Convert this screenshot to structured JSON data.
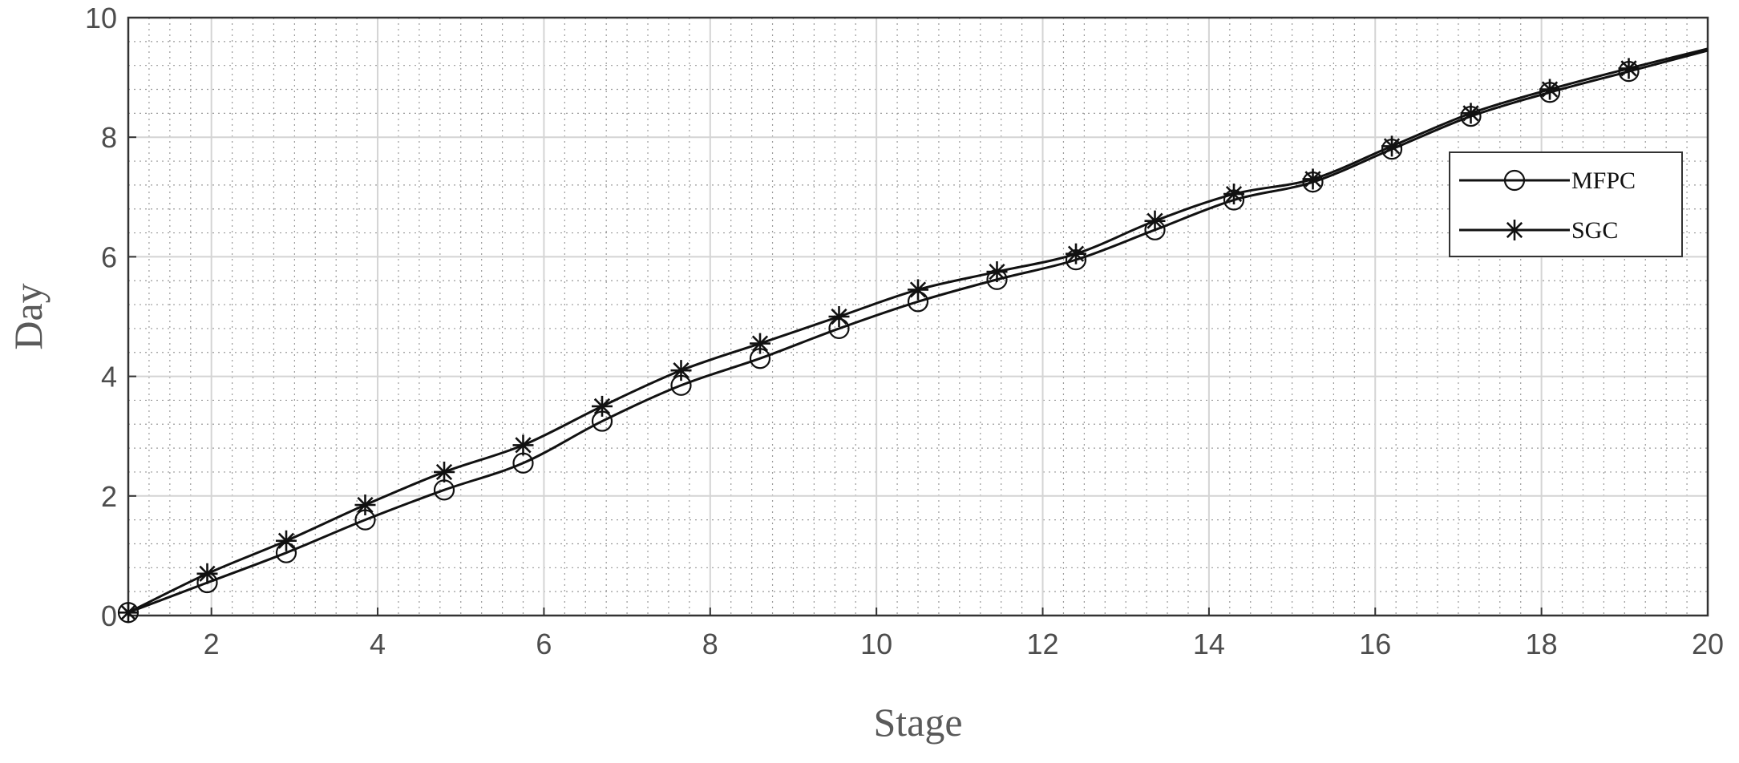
{
  "chart_data": {
    "type": "line",
    "xlabel": "Stage",
    "ylabel": "Day",
    "xlim": [
      1,
      20
    ],
    "ylim": [
      0,
      10
    ],
    "xticks": [
      2,
      4,
      6,
      8,
      10,
      12,
      14,
      16,
      18,
      20
    ],
    "yticks": [
      0,
      2,
      4,
      6,
      8,
      10
    ],
    "grid": true,
    "minor_grid": true,
    "legend_position": "right",
    "series": [
      {
        "name": "MFPC",
        "marker": "circle",
        "color": "#111111",
        "x": [
          1,
          1.95,
          2.9,
          3.85,
          4.8,
          5.75,
          6.7,
          7.65,
          8.6,
          9.55,
          10.5,
          11.45,
          12.4,
          13.35,
          14.3,
          15.25,
          16.2,
          17.15,
          18.1,
          19.05,
          20
        ],
        "y": [
          0.05,
          0.55,
          1.05,
          1.6,
          2.1,
          2.55,
          3.25,
          3.85,
          4.3,
          4.8,
          5.25,
          5.62,
          5.95,
          6.45,
          6.95,
          7.25,
          7.8,
          8.35,
          8.75,
          9.1,
          9.45
        ]
      },
      {
        "name": "SGC",
        "marker": "star",
        "color": "#111111",
        "x": [
          1,
          1.95,
          2.9,
          3.85,
          4.8,
          5.75,
          6.7,
          7.65,
          8.6,
          9.55,
          10.5,
          11.45,
          12.4,
          13.35,
          14.3,
          15.25,
          16.2,
          17.15,
          18.1,
          19.05,
          20
        ],
        "y": [
          0.05,
          0.7,
          1.25,
          1.85,
          2.4,
          2.85,
          3.5,
          4.1,
          4.55,
          5.0,
          5.45,
          5.75,
          6.05,
          6.6,
          7.05,
          7.3,
          7.85,
          8.4,
          8.8,
          9.15,
          9.48
        ]
      }
    ]
  }
}
